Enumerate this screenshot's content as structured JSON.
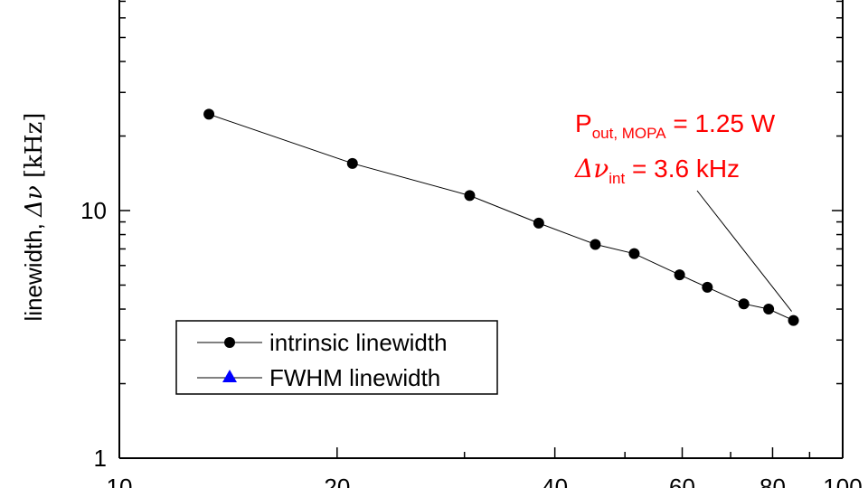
{
  "chart_data": {
    "type": "scatter",
    "xscale": "log",
    "yscale": "log",
    "xlim": [
      10,
      100
    ],
    "ylim": [
      1,
      100
    ],
    "x_tick_labels": [
      "10",
      "20",
      "40",
      "60",
      "80",
      "100"
    ],
    "y_tick_labels": [
      "1",
      "10"
    ],
    "ylabel": {
      "prefix": "linewidth, ",
      "symbol": "Δν",
      "unit": " [kHz]"
    },
    "series": [
      {
        "name": "intrinsic linewidth",
        "marker": "circle",
        "color": "#000000",
        "x": [
          13.3,
          21.0,
          30.5,
          38.0,
          45.5,
          51.5,
          59.5,
          65.0,
          73.0,
          79.0,
          85.5
        ],
        "y": [
          24.5,
          15.5,
          11.5,
          8.9,
          7.3,
          6.7,
          5.5,
          4.9,
          4.2,
          4.0,
          3.6
        ]
      },
      {
        "name": "FWHM linewidth",
        "marker": "triangle",
        "color": "#0000ff",
        "x": [],
        "y": []
      }
    ],
    "annotation": {
      "line1_main": "P",
      "line1_sub": "out, MOPA",
      "line1_rest": " = 1.25 W",
      "line2_main": "Δν",
      "line2_sub": "int",
      "line2_rest": " = 3.6 kHz",
      "color": "#ff0000",
      "points_to": {
        "x": 85.5,
        "y": 3.6
      }
    },
    "legend_position": "bottom-left",
    "grid": false
  }
}
